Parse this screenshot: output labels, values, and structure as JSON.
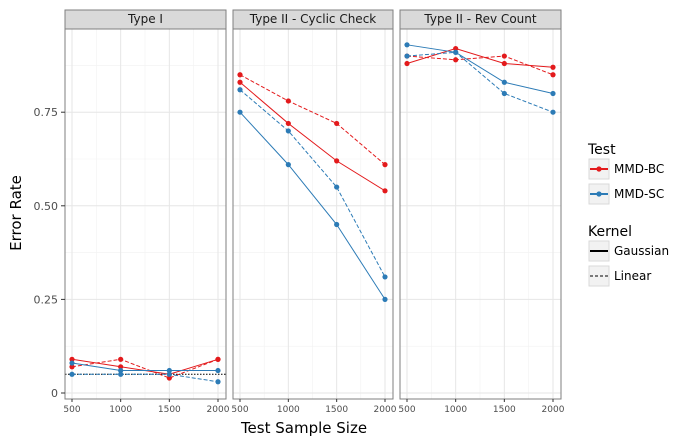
{
  "chart_data": {
    "type": "line",
    "xlabel": "Test Sample Size",
    "ylabel": "Error Rate",
    "x": [
      500,
      1000,
      1500,
      2000
    ],
    "x_tick_labels": [
      "500",
      "1000",
      "1500",
      "2000"
    ],
    "ylim": [
      -0.02,
      0.98
    ],
    "y_ticks": [
      0,
      0.25,
      0.5,
      0.75
    ],
    "y_tick_labels": [
      "0",
      "0.25",
      "0.50",
      "0.75"
    ],
    "reference_line": 0.05,
    "grid": true,
    "legend_position": "right",
    "colors": {
      "MMD-BC": "#e31a1c",
      "MMD-SC": "#2c7bb6"
    },
    "legend": {
      "test": {
        "title": "Test",
        "entries": [
          "MMD-BC",
          "MMD-SC"
        ]
      },
      "kernel": {
        "title": "Kernel",
        "entries": [
          "Gaussian",
          "Linear"
        ]
      }
    },
    "panels": [
      {
        "title": "Type I",
        "series": [
          {
            "test": "MMD-BC",
            "kernel": "Gaussian",
            "values": [
              0.09,
              0.07,
              0.05,
              0.09
            ]
          },
          {
            "test": "MMD-BC",
            "kernel": "Linear",
            "values": [
              0.07,
              0.09,
              0.04,
              0.09
            ]
          },
          {
            "test": "MMD-SC",
            "kernel": "Gaussian",
            "values": [
              0.08,
              0.06,
              0.06,
              0.06
            ]
          },
          {
            "test": "MMD-SC",
            "kernel": "Linear",
            "values": [
              0.05,
              0.05,
              0.05,
              0.03
            ]
          }
        ]
      },
      {
        "title": "Type II - Cyclic Check",
        "series": [
          {
            "test": "MMD-BC",
            "kernel": "Gaussian",
            "values": [
              0.83,
              0.72,
              0.62,
              0.54
            ]
          },
          {
            "test": "MMD-BC",
            "kernel": "Linear",
            "values": [
              0.85,
              0.78,
              0.72,
              0.61
            ]
          },
          {
            "test": "MMD-SC",
            "kernel": "Gaussian",
            "values": [
              0.75,
              0.61,
              0.45,
              0.25
            ]
          },
          {
            "test": "MMD-SC",
            "kernel": "Linear",
            "values": [
              0.81,
              0.7,
              0.55,
              0.31
            ]
          }
        ]
      },
      {
        "title": "Type II - Rev Count",
        "series": [
          {
            "test": "MMD-BC",
            "kernel": "Gaussian",
            "values": [
              0.88,
              0.92,
              0.88,
              0.87
            ]
          },
          {
            "test": "MMD-BC",
            "kernel": "Linear",
            "values": [
              0.9,
              0.89,
              0.9,
              0.85
            ]
          },
          {
            "test": "MMD-SC",
            "kernel": "Gaussian",
            "values": [
              0.93,
              0.91,
              0.83,
              0.8
            ]
          },
          {
            "test": "MMD-SC",
            "kernel": "Linear",
            "values": [
              0.9,
              0.91,
              0.8,
              0.75
            ]
          }
        ]
      }
    ]
  }
}
